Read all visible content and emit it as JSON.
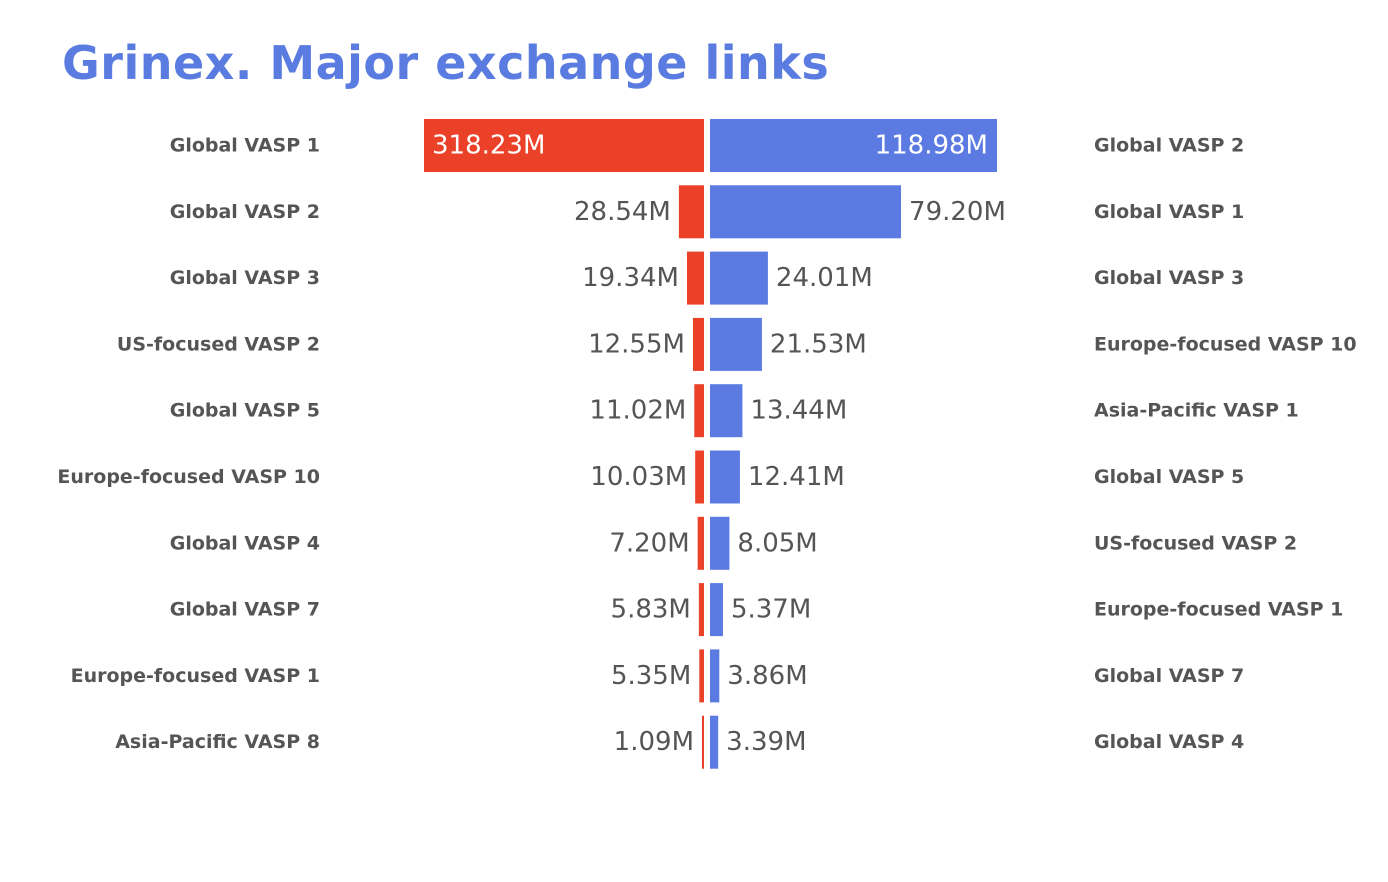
{
  "title": "Grinex. Major exchange links",
  "colors": {
    "title": "#5A7BE0",
    "left_bar": "#EA4128",
    "right_bar": "#5B7BE2",
    "category_text": "#555555",
    "value_text_outside": "#555555",
    "value_text_inside": "#FFFFFF"
  },
  "chart_data": {
    "type": "bar",
    "orientation": "horizontal-diverging",
    "unit": "M",
    "series": [
      {
        "side": "left",
        "categories": [
          "Global VASP 1",
          "Global VASP 2",
          "Global VASP 3",
          "US-focused VASP 2",
          "Global VASP 5",
          "Europe-focused VASP 10",
          "Global VASP 4",
          "Global VASP 7",
          "Europe-focused VASP 1",
          "Asia-Pacific VASP 8"
        ],
        "values": [
          318.23,
          28.54,
          19.34,
          12.55,
          11.02,
          10.03,
          7.2,
          5.83,
          5.35,
          1.09
        ],
        "labels": [
          "318.23M",
          "28.54M",
          "19.34M",
          "12.55M",
          "11.02M",
          "10.03M",
          "7.20M",
          "5.83M",
          "5.35M",
          "1.09M"
        ]
      },
      {
        "side": "right",
        "categories": [
          "Global VASP 2",
          "Global VASP 1",
          "Global VASP 3",
          "Europe-focused VASP 10",
          "Asia-Pacific VASP 1",
          "Global VASP 5",
          "US-focused VASP 2",
          "Europe-focused VASP 1",
          "Global VASP 7",
          "Global VASP 4"
        ],
        "values": [
          118.98,
          79.2,
          24.01,
          21.53,
          13.44,
          12.41,
          8.05,
          5.37,
          3.86,
          3.39
        ],
        "labels": [
          "118.98M",
          "79.20M",
          "24.01M",
          "21.53M",
          "13.44M",
          "12.41M",
          "8.05M",
          "5.37M",
          "3.86M",
          "3.39M"
        ]
      }
    ],
    "grid": false,
    "legend": "none"
  }
}
